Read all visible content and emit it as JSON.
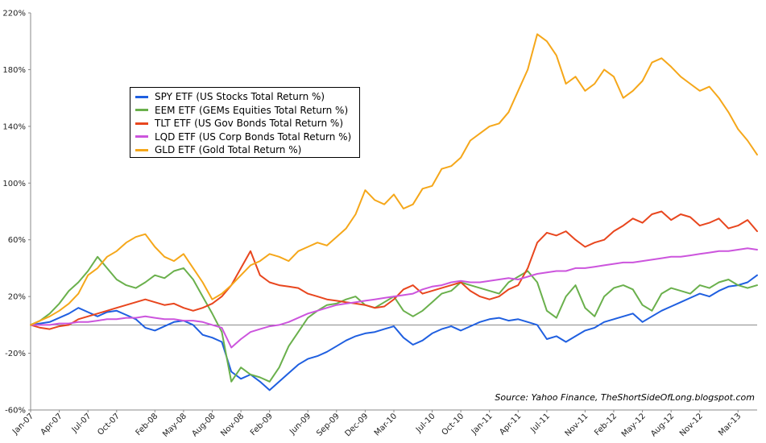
{
  "chart_data": {
    "type": "line",
    "title": "",
    "xlabel": "",
    "ylabel": "",
    "ylim": [
      -60,
      220
    ],
    "yticks": [
      -60,
      -20,
      20,
      60,
      100,
      140,
      180,
      220
    ],
    "ytick_labels": [
      "-60%",
      "-20%",
      "20%",
      "60%",
      "100%",
      "140%",
      "180%",
      "220%"
    ],
    "x_months_span": 76,
    "x_tick_labels": [
      "Jan-07",
      "Apr-07",
      "Jul-07",
      "Oct-07",
      "Feb-08",
      "May-08",
      "Aug-08",
      "Nov-08",
      "Feb-09",
      "Jun-09",
      "Sep-09",
      "Dec-09",
      "Mar-10",
      "Jul-10",
      "Oct-10",
      "Jan-11",
      "Apr-11",
      "Jul-11",
      "Nov-11",
      "Feb-12",
      "May-12",
      "Aug-12",
      "Nov-12",
      "Mar-13"
    ],
    "x_tick_months": [
      0,
      3,
      6,
      9,
      13,
      16,
      19,
      22,
      25,
      29,
      32,
      35,
      38,
      42,
      45,
      48,
      51,
      54,
      58,
      61,
      64,
      67,
      70,
      74
    ],
    "zero_line": true,
    "grid": false,
    "legend_position": "upper-left",
    "source_note": "Source: Yahoo Finance, TheShortSideOfLong.blogspot.com",
    "series": [
      {
        "name": "SPY ETF (US Stocks Total Return %)",
        "color": "#1f5fe0",
        "x": [
          0,
          1,
          2,
          3,
          4,
          5,
          6,
          7,
          8,
          9,
          10,
          11,
          12,
          13,
          14,
          15,
          16,
          17,
          18,
          19,
          20,
          21,
          22,
          23,
          24,
          25,
          26,
          27,
          28,
          29,
          30,
          31,
          32,
          33,
          34,
          35,
          36,
          37,
          38,
          39,
          40,
          41,
          42,
          43,
          44,
          45,
          46,
          47,
          48,
          49,
          50,
          51,
          52,
          53,
          54,
          55,
          56,
          57,
          58,
          59,
          60,
          61,
          62,
          63,
          64,
          65,
          66,
          67,
          68,
          69,
          70,
          71,
          72,
          73,
          74,
          75,
          76
        ],
        "values": [
          0,
          1,
          2,
          5,
          8,
          12,
          9,
          6,
          9,
          10,
          7,
          4,
          -2,
          -4,
          -1,
          2,
          3,
          0,
          -7,
          -9,
          -12,
          -33,
          -38,
          -35,
          -40,
          -46,
          -40,
          -34,
          -28,
          -24,
          -22,
          -19,
          -15,
          -11,
          -8,
          -6,
          -5,
          -3,
          -1,
          -9,
          -14,
          -11,
          -6,
          -3,
          -1,
          -4,
          -1,
          2,
          4,
          5,
          3,
          4,
          2,
          0,
          -10,
          -8,
          -12,
          -8,
          -4,
          -2,
          2,
          4,
          6,
          8,
          2,
          6,
          10,
          13,
          16,
          19,
          22,
          20,
          24,
          27,
          28,
          30,
          35
        ]
      },
      {
        "name": "EEM ETF (GEMs Equities Total Return %)",
        "color": "#6ab04c",
        "x": [
          0,
          1,
          2,
          3,
          4,
          5,
          6,
          7,
          8,
          9,
          10,
          11,
          12,
          13,
          14,
          15,
          16,
          17,
          18,
          19,
          20,
          21,
          22,
          23,
          24,
          25,
          26,
          27,
          28,
          29,
          30,
          31,
          32,
          33,
          34,
          35,
          36,
          37,
          38,
          39,
          40,
          41,
          42,
          43,
          44,
          45,
          46,
          47,
          48,
          49,
          50,
          51,
          52,
          53,
          54,
          55,
          56,
          57,
          58,
          59,
          60,
          61,
          62,
          63,
          64,
          65,
          66,
          67,
          68,
          69,
          70,
          71,
          72,
          73,
          74,
          75,
          76
        ],
        "values": [
          0,
          3,
          8,
          15,
          24,
          30,
          38,
          48,
          40,
          32,
          28,
          26,
          30,
          35,
          33,
          38,
          40,
          32,
          20,
          8,
          -5,
          -40,
          -30,
          -35,
          -37,
          -40,
          -30,
          -15,
          -5,
          5,
          10,
          14,
          15,
          18,
          20,
          14,
          12,
          16,
          20,
          10,
          6,
          10,
          16,
          22,
          24,
          30,
          28,
          26,
          24,
          22,
          30,
          34,
          38,
          30,
          10,
          5,
          20,
          28,
          12,
          6,
          20,
          26,
          28,
          25,
          14,
          10,
          22,
          26,
          24,
          22,
          28,
          26,
          30,
          32,
          28,
          26,
          28
        ]
      },
      {
        "name": "TLT ETF (US Gov Bonds Total Return %)",
        "color": "#e8461e",
        "x": [
          0,
          1,
          2,
          3,
          4,
          5,
          6,
          7,
          8,
          9,
          10,
          11,
          12,
          13,
          14,
          15,
          16,
          17,
          18,
          19,
          20,
          21,
          22,
          23,
          24,
          25,
          26,
          27,
          28,
          29,
          30,
          31,
          32,
          33,
          34,
          35,
          36,
          37,
          38,
          39,
          40,
          41,
          42,
          43,
          44,
          45,
          46,
          47,
          48,
          49,
          50,
          51,
          52,
          53,
          54,
          55,
          56,
          57,
          58,
          59,
          60,
          61,
          62,
          63,
          64,
          65,
          66,
          67,
          68,
          69,
          70,
          71,
          72,
          73,
          74,
          75,
          76
        ],
        "values": [
          0,
          -2,
          -3,
          -1,
          0,
          4,
          6,
          8,
          10,
          12,
          14,
          16,
          18,
          16,
          14,
          15,
          12,
          10,
          12,
          15,
          20,
          28,
          40,
          52,
          35,
          30,
          28,
          27,
          26,
          22,
          20,
          18,
          17,
          16,
          15,
          14,
          12,
          13,
          18,
          25,
          28,
          22,
          24,
          26,
          28,
          30,
          24,
          20,
          18,
          20,
          25,
          28,
          40,
          58,
          65,
          63,
          66,
          60,
          55,
          58,
          60,
          66,
          70,
          75,
          72,
          78,
          80,
          74,
          78,
          76,
          70,
          72,
          75,
          68,
          70,
          74,
          66
        ]
      },
      {
        "name": "LQD ETF (US Corp Bonds Total Return %)",
        "color": "#cc55dd",
        "x": [
          0,
          1,
          2,
          3,
          4,
          5,
          6,
          7,
          8,
          9,
          10,
          11,
          12,
          13,
          14,
          15,
          16,
          17,
          18,
          19,
          20,
          21,
          22,
          23,
          24,
          25,
          26,
          27,
          28,
          29,
          30,
          31,
          32,
          33,
          34,
          35,
          36,
          37,
          38,
          39,
          40,
          41,
          42,
          43,
          44,
          45,
          46,
          47,
          48,
          49,
          50,
          51,
          52,
          53,
          54,
          55,
          56,
          57,
          58,
          59,
          60,
          61,
          62,
          63,
          64,
          65,
          66,
          67,
          68,
          69,
          70,
          71,
          72,
          73,
          74,
          75,
          76
        ],
        "values": [
          0,
          0,
          0,
          1,
          1,
          2,
          2,
          3,
          4,
          4,
          5,
          5,
          6,
          5,
          4,
          4,
          3,
          3,
          2,
          0,
          -2,
          -16,
          -10,
          -5,
          -3,
          -1,
          0,
          2,
          5,
          8,
          10,
          12,
          14,
          15,
          16,
          17,
          18,
          19,
          20,
          21,
          22,
          25,
          27,
          28,
          30,
          31,
          30,
          30,
          31,
          32,
          33,
          32,
          34,
          36,
          37,
          38,
          38,
          40,
          40,
          41,
          42,
          43,
          44,
          44,
          45,
          46,
          47,
          48,
          48,
          49,
          50,
          51,
          52,
          52,
          53,
          54,
          53
        ]
      },
      {
        "name": "GLD ETF (Gold Total Return %)",
        "color": "#f5a71a",
        "x": [
          0,
          1,
          2,
          3,
          4,
          5,
          6,
          7,
          8,
          9,
          10,
          11,
          12,
          13,
          14,
          15,
          16,
          17,
          18,
          19,
          20,
          21,
          22,
          23,
          24,
          25,
          26,
          27,
          28,
          29,
          30,
          31,
          32,
          33,
          34,
          35,
          36,
          37,
          38,
          39,
          40,
          41,
          42,
          43,
          44,
          45,
          46,
          47,
          48,
          49,
          50,
          51,
          52,
          53,
          54,
          55,
          56,
          57,
          58,
          59,
          60,
          61,
          62,
          63,
          64,
          65,
          66,
          67,
          68,
          69,
          70,
          71,
          72,
          73,
          74,
          75,
          76
        ],
        "values": [
          0,
          3,
          6,
          10,
          15,
          22,
          35,
          40,
          48,
          52,
          58,
          62,
          64,
          55,
          48,
          45,
          50,
          40,
          30,
          18,
          22,
          28,
          35,
          42,
          45,
          50,
          48,
          45,
          52,
          55,
          58,
          56,
          62,
          68,
          78,
          95,
          88,
          85,
          92,
          82,
          85,
          96,
          98,
          110,
          112,
          118,
          130,
          135,
          140,
          142,
          150,
          165,
          180,
          205,
          200,
          190,
          170,
          175,
          165,
          170,
          180,
          175,
          160,
          165,
          172,
          185,
          188,
          182,
          175,
          170,
          165,
          168,
          160,
          150,
          138,
          130,
          120
        ]
      }
    ]
  }
}
